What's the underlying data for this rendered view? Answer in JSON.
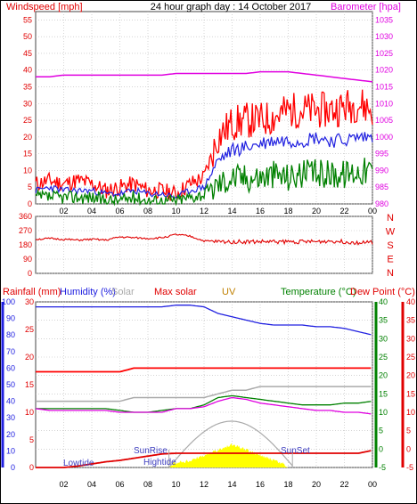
{
  "colors": {
    "wind_label": "#e00000",
    "wind_gust": "#ff0000",
    "wind_avg": "#2020e0",
    "wind_speed": "#008000",
    "barometer": "#e000e0",
    "direction": "#e00000",
    "rain": "#e00000",
    "humidity": "#2020e0",
    "solar": "#aaaaaa",
    "max_solar": "#ff0000",
    "uv": "#c08000",
    "temperature": "#008000",
    "dew_point": "#ff0000",
    "dew_line": "#e000e0",
    "heat_fill": "#ffff00",
    "grid": "#bbbbbb"
  },
  "chart_data": [
    {
      "type": "line",
      "title": "24 hour graph day : 14 October 2017",
      "left_axis_label": "Windspeed [mph]",
      "right_axis_label": "Barometer [hpa]",
      "x_ticks": [
        "02",
        "04",
        "06",
        "08",
        "10",
        "12",
        "14",
        "16",
        "18",
        "20",
        "22",
        "00"
      ],
      "y_left_ticks": [
        "0",
        "5",
        "10",
        "15",
        "20",
        "25",
        "30",
        "35",
        "40",
        "45",
        "50",
        "55"
      ],
      "y_left_lim": [
        0,
        57.5
      ],
      "y_right_ticks": [
        "980",
        "985",
        "990",
        "995",
        "1000",
        "1005",
        "1010",
        "1015",
        "1020",
        "1025",
        "1030",
        "1035"
      ],
      "y_right_lim": [
        980,
        1037.5
      ],
      "hours": [
        0,
        1,
        2,
        3,
        4,
        5,
        6,
        7,
        8,
        9,
        10,
        11,
        12,
        13,
        14,
        15,
        16,
        17,
        18,
        19,
        20,
        21,
        22,
        23,
        24
      ],
      "series": [
        {
          "values": [
            6,
            7,
            6,
            7,
            6,
            4,
            5,
            6,
            4,
            4,
            3,
            6,
            8,
            20,
            24,
            25,
            25,
            26,
            28,
            28,
            28,
            28,
            29,
            30,
            28
          ]
        },
        {
          "values": [
            4,
            5,
            4,
            4,
            4,
            3,
            3,
            4,
            3,
            3,
            2,
            4,
            5,
            13,
            16,
            17,
            18,
            19,
            19,
            19,
            20,
            19,
            19,
            20,
            20
          ]
        },
        {
          "values": [
            2,
            2,
            2,
            2,
            2,
            1,
            1,
            2,
            1,
            1,
            1,
            2,
            3,
            6,
            8,
            8,
            8,
            9,
            8,
            9,
            9,
            9,
            9,
            10,
            10
          ]
        },
        {
          "values": [
            1018,
            1018,
            1018.5,
            1018.5,
            1018.5,
            1018.5,
            1018.5,
            1018.5,
            1018.5,
            1018.5,
            1019,
            1019,
            1019,
            1019,
            1019,
            1019,
            1019.5,
            1019.5,
            1019.5,
            1019,
            1018.5,
            1018,
            1017.5,
            1017,
            1016.5
          ]
        }
      ]
    },
    {
      "type": "line",
      "direction_labels": [
        "N",
        "W",
        "S",
        "E",
        "N"
      ],
      "y_ticks": [
        "0",
        "90",
        "180",
        "270",
        "360"
      ],
      "y_lim": [
        0,
        360
      ],
      "hours": [
        0,
        1,
        2,
        3,
        4,
        5,
        6,
        7,
        8,
        9,
        10,
        11,
        12,
        13,
        14,
        15,
        16,
        17,
        18,
        19,
        20,
        21,
        22,
        23,
        24
      ],
      "series": [
        {
          "values": [
            215,
            220,
            215,
            210,
            215,
            210,
            230,
            225,
            220,
            225,
            245,
            235,
            205,
            200,
            200,
            200,
            200,
            200,
            200,
            200,
            200,
            205,
            200,
            195,
            195
          ]
        }
      ]
    },
    {
      "type": "line",
      "labels": {
        "rainfall": "Rainfall (mm)",
        "humidity": "Humidity (%)",
        "solar": "Solar",
        "max_solar": "Max solar",
        "uv": "UV",
        "temperature": "Temperature (°C)",
        "dew_point": "Dew Point (°C)"
      },
      "annotations": [
        "Lowtide",
        "SunRise",
        "Hightide",
        "SunSet"
      ],
      "x_ticks": [
        "02",
        "04",
        "06",
        "08",
        "10",
        "12",
        "14",
        "16",
        "18",
        "20",
        "22",
        "00"
      ],
      "y_humidity_ticks": [
        "0",
        "10",
        "20",
        "30",
        "40",
        "50",
        "60",
        "70",
        "80",
        "90",
        "100"
      ],
      "y_rain_ticks": [
        "0",
        "5",
        "10",
        "15",
        "20",
        "25",
        "30"
      ],
      "y_right_inner_ticks": [
        "-5",
        "0",
        "5",
        "10",
        "15",
        "20",
        "25",
        "30",
        "35",
        "40"
      ],
      "y_right_outer_ticks": [
        "-5",
        "0",
        "5",
        "10",
        "15",
        "20",
        "25",
        "30",
        "35",
        "40"
      ],
      "temp_lim": [
        -5,
        40
      ],
      "hours": [
        0,
        1,
        2,
        3,
        4,
        5,
        6,
        7,
        8,
        9,
        10,
        11,
        12,
        13,
        14,
        15,
        16,
        17,
        18,
        19,
        20,
        21,
        22,
        23,
        24
      ],
      "series": [
        {
          "values": [
            97,
            97,
            97,
            97,
            97,
            97,
            97,
            97,
            97,
            97,
            98,
            98,
            97,
            93,
            91,
            89,
            87,
            86,
            86,
            86,
            85,
            85,
            84,
            82,
            80
          ]
        },
        {
          "values": [
            13,
            13,
            13,
            13,
            13,
            13,
            13,
            14,
            14,
            14,
            14,
            14,
            14,
            15,
            16,
            16,
            17,
            17,
            17,
            17,
            17,
            17,
            17,
            17,
            17
          ]
        },
        {
          "values": [
            21,
            21,
            21,
            21,
            21,
            21,
            21,
            22,
            22,
            22,
            22,
            22,
            22,
            22,
            22,
            22,
            22,
            22,
            22,
            22,
            22,
            22,
            22,
            22,
            22
          ]
        },
        {
          "values": [
            23,
            23,
            23,
            22,
            23,
            22,
            23,
            23,
            24,
            22,
            22,
            22,
            22,
            22,
            22,
            22,
            22,
            22,
            22,
            22,
            22,
            22,
            22,
            22,
            22
          ]
        },
        {
          "values": [
            11,
            11,
            11,
            11,
            11,
            11,
            10.5,
            10,
            10,
            10.5,
            11,
            11,
            12,
            14,
            14.5,
            14,
            13.5,
            13,
            12.5,
            12,
            12,
            12,
            12.5,
            12.5,
            13
          ]
        },
        {
          "values": [
            11,
            10.5,
            10.5,
            10.5,
            10.5,
            10.5,
            10,
            10,
            10,
            10,
            11,
            11,
            11.5,
            13,
            14,
            13.5,
            12.5,
            12,
            11.5,
            11,
            10.5,
            10.5,
            10,
            10,
            9.5
          ]
        },
        {
          "values": [
            0,
            0,
            0,
            0,
            0,
            0,
            0,
            0,
            0,
            0,
            0.5,
            1,
            2,
            3,
            4,
            3,
            2,
            1,
            0,
            0,
            0,
            0,
            0,
            0,
            0
          ]
        },
        {
          "values": [
            0,
            0,
            0,
            0.2,
            0.5,
            0.8,
            1,
            1.3,
            1.6,
            1.9,
            2,
            2,
            2,
            2,
            2,
            2,
            2,
            2,
            2,
            2,
            2,
            2,
            2,
            2,
            2.4
          ]
        }
      ]
    }
  ]
}
